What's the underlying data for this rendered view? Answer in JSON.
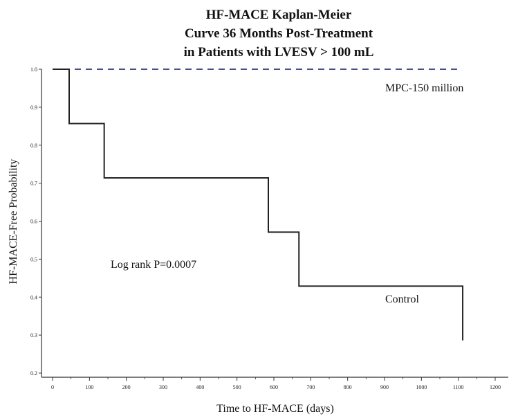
{
  "chart_data": {
    "type": "line",
    "title_lines": [
      "HF-MACE Kaplan-Meier",
      "Curve 36 Months Post-Treatment",
      "in Patients with LVESV > 100 mL"
    ],
    "xlabel": "Time to HF-MACE (days)",
    "ylabel": "HF-MACE-Free Probability",
    "xlim": [
      0,
      1200
    ],
    "ylim": [
      0.2,
      1.0
    ],
    "x_ticks": [
      0,
      100,
      200,
      300,
      400,
      500,
      600,
      700,
      800,
      900,
      1000,
      1100,
      1200
    ],
    "x_tick_labels": [
      "0",
      "100",
      "200",
      "300",
      "400",
      "500",
      "600",
      "700",
      "800",
      "900",
      "1000",
      "1100",
      "1200"
    ],
    "y_ticks": [
      0.2,
      0.3,
      0.4,
      0.5,
      0.6,
      0.7,
      0.8,
      0.9,
      1.0
    ],
    "y_tick_labels": [
      "0.2",
      "0.3",
      "0.4",
      "0.5",
      "0.6",
      "0.7",
      "0.8",
      "0.9",
      "1.0"
    ],
    "grid": false,
    "series": [
      {
        "name": "MPC-150 million",
        "style": "dashed",
        "color": "#3d4f9e",
        "x": [
          0,
          1110
        ],
        "y": [
          1.0,
          1.0
        ]
      },
      {
        "name": "Control",
        "style": "step",
        "color": "#222222",
        "x": [
          0,
          45,
          140,
          585,
          668,
          1112,
          1112
        ],
        "y": [
          1.0,
          0.857,
          0.714,
          0.571,
          0.429,
          0.429,
          0.286
        ]
      }
    ],
    "annotations": [
      {
        "text": "Log rank P=0.0007",
        "x": 380,
        "y": 0.5
      },
      {
        "text": "Control",
        "x": 1000,
        "y": 0.42
      },
      {
        "text": "MPC-150 million",
        "x": 1000,
        "y": 0.96
      }
    ]
  }
}
